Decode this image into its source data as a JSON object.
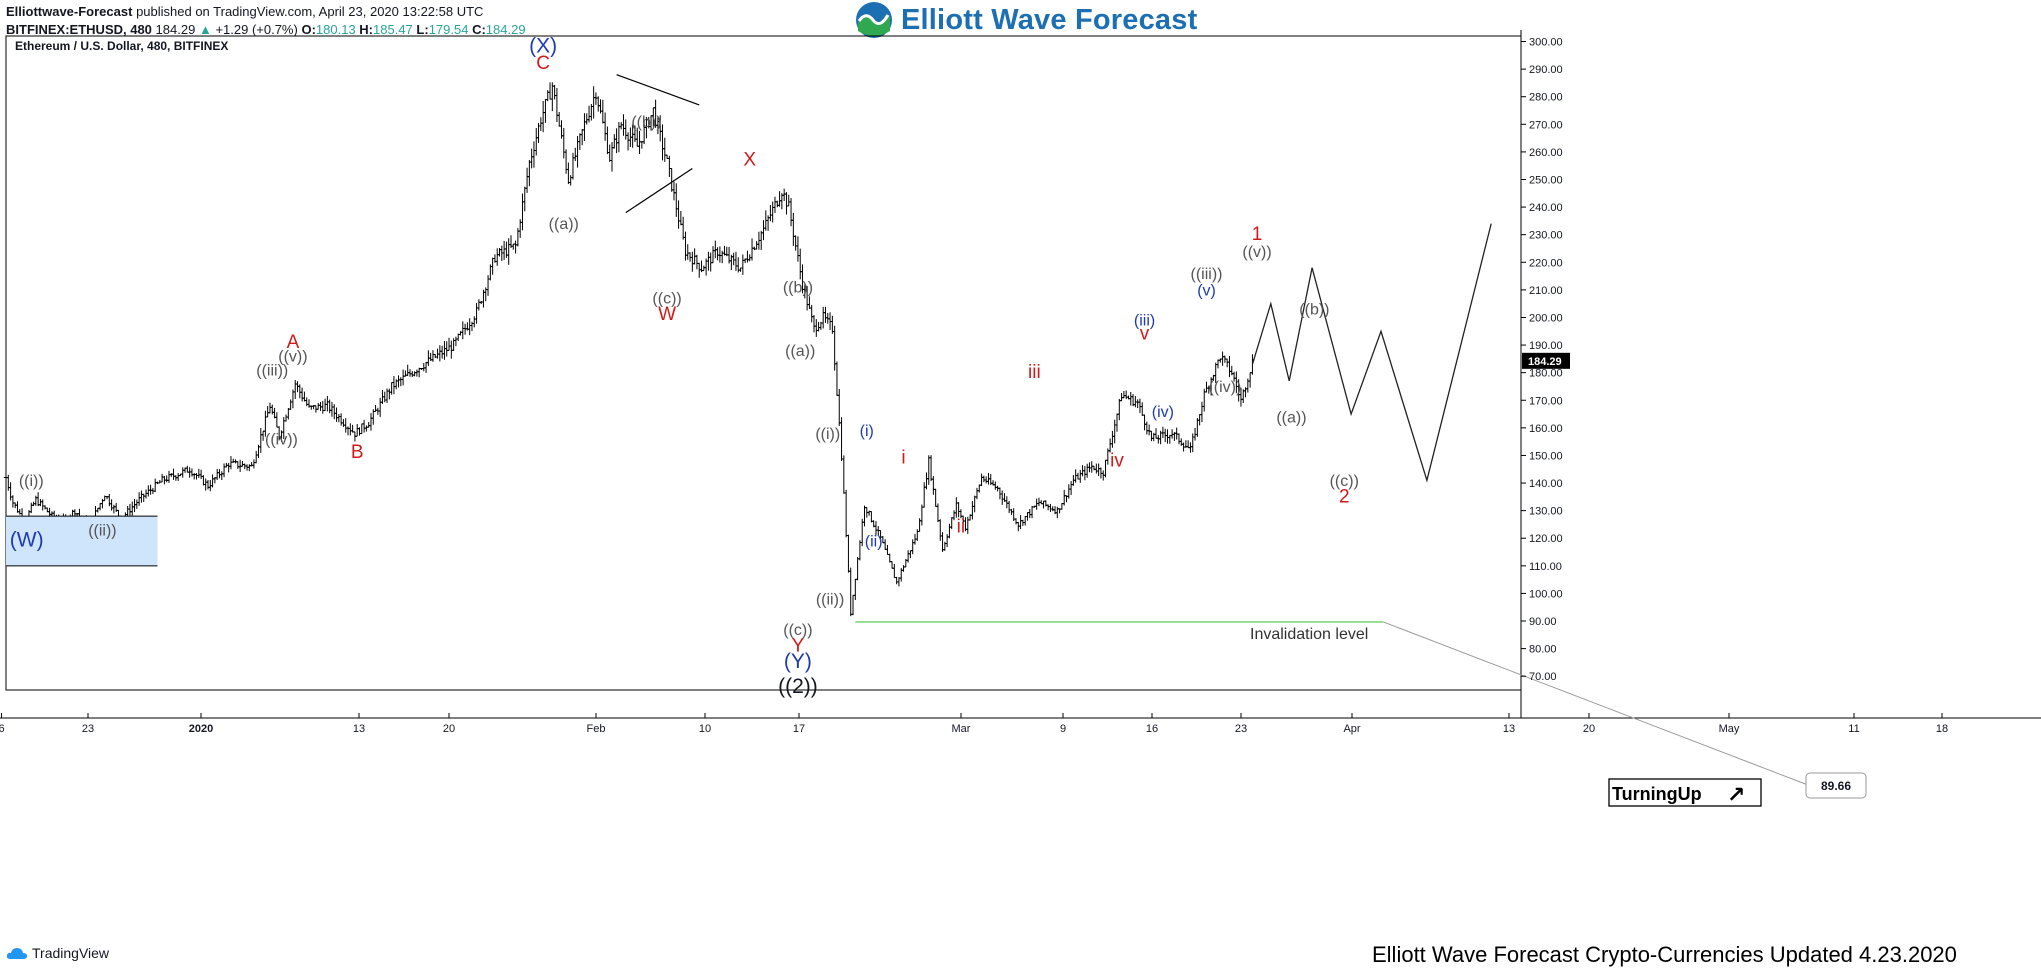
{
  "header": {
    "publisher": "Elliottwave-Forecast",
    "published_text": "published on TradingView.com, April 23, 2020 13:22:58 UTC",
    "symbol": "BITFINEX:ETHUSD, 480",
    "last": "184.29",
    "change_arrow": "▲",
    "change": "+1.29 (+0.7%)",
    "ohlc": [
      {
        "key": "O:",
        "value": "180.13"
      },
      {
        "key": "H:",
        "value": "185.47"
      },
      {
        "key": "L:",
        "value": "179.54"
      },
      {
        "key": "C:",
        "value": "184.29"
      }
    ]
  },
  "logo": {
    "text": "Elliott Wave Forecast",
    "icon": "wave-logo-icon"
  },
  "footer": {
    "brand": "TradingView",
    "brand_icon": "tradingview-cloud-icon",
    "update": "Elliott Wave Forecast Crypto-Currencies Updated 4.23.2020"
  },
  "chart_data": {
    "type": "candlestick-ohlc",
    "title": "Ethereum / U.S. Dollar, 480, BITFINEX",
    "xlabel": "",
    "ylabel": "",
    "ylim": [
      65,
      302
    ],
    "x_tick_labels": [
      "6",
      "23",
      "2020",
      "13",
      "20",
      "Feb",
      "10",
      "17",
      "Mar",
      "9",
      "16",
      "23",
      "Apr",
      "13",
      "20",
      "May",
      "11",
      "18"
    ],
    "y_ticks": [
      70,
      80,
      90,
      100,
      110,
      120,
      130,
      140,
      150,
      160,
      170,
      180,
      190,
      200,
      210,
      220,
      230,
      240,
      250,
      260,
      270,
      280,
      290,
      300
    ],
    "y_tick_labels": [
      "70.00",
      "80.00",
      "90.00",
      "100.00",
      "110.00",
      "120.00",
      "130.00",
      "140.00",
      "150.00",
      "160.00",
      "170.00",
      "180.00",
      "190.00",
      "200.00",
      "210.00",
      "220.00",
      "230.00",
      "240.00",
      "250.00",
      "260.00",
      "270.00",
      "280.00",
      "290.00",
      "300.00"
    ],
    "last_price": 184.29,
    "last_price_label": "184.29",
    "price_path": [
      {
        "t": 0,
        "p": 142
      },
      {
        "t": 3,
        "p": 133
      },
      {
        "t": 8,
        "p": 126
      },
      {
        "t": 13,
        "p": 134
      },
      {
        "t": 20,
        "p": 128
      },
      {
        "t": 25,
        "p": 126
      },
      {
        "t": 30,
        "p": 130
      },
      {
        "t": 36,
        "p": 124
      },
      {
        "t": 43,
        "p": 136
      },
      {
        "t": 50,
        "p": 127
      },
      {
        "t": 58,
        "p": 134
      },
      {
        "t": 68,
        "p": 141
      },
      {
        "t": 80,
        "p": 145
      },
      {
        "t": 88,
        "p": 139
      },
      {
        "t": 97,
        "p": 147
      },
      {
        "t": 107,
        "p": 146
      },
      {
        "t": 115,
        "p": 168
      },
      {
        "t": 119,
        "p": 157
      },
      {
        "t": 126,
        "p": 176
      },
      {
        "t": 132,
        "p": 167
      },
      {
        "t": 140,
        "p": 168
      },
      {
        "t": 152,
        "p": 158
      },
      {
        "t": 158,
        "p": 162
      },
      {
        "t": 168,
        "p": 175
      },
      {
        "t": 180,
        "p": 182
      },
      {
        "t": 195,
        "p": 190
      },
      {
        "t": 205,
        "p": 202
      },
      {
        "t": 213,
        "p": 222
      },
      {
        "t": 222,
        "p": 226
      },
      {
        "t": 228,
        "p": 256
      },
      {
        "t": 233,
        "p": 272
      },
      {
        "t": 238,
        "p": 284
      },
      {
        "t": 245,
        "p": 250
      },
      {
        "t": 252,
        "p": 270
      },
      {
        "t": 257,
        "p": 282
      },
      {
        "t": 263,
        "p": 258
      },
      {
        "t": 268,
        "p": 270
      },
      {
        "t": 275,
        "p": 262
      },
      {
        "t": 282,
        "p": 275
      },
      {
        "t": 288,
        "p": 256
      },
      {
        "t": 296,
        "p": 224
      },
      {
        "t": 303,
        "p": 218
      },
      {
        "t": 310,
        "p": 224
      },
      {
        "t": 320,
        "p": 218
      },
      {
        "t": 330,
        "p": 232
      },
      {
        "t": 338,
        "p": 246
      },
      {
        "t": 341,
        "p": 240
      },
      {
        "t": 347,
        "p": 212
      },
      {
        "t": 352,
        "p": 196
      },
      {
        "t": 356,
        "p": 200
      },
      {
        "t": 360,
        "p": 196
      },
      {
        "t": 364,
        "p": 150
      },
      {
        "t": 368,
        "p": 93
      },
      {
        "t": 374,
        "p": 132
      },
      {
        "t": 381,
        "p": 120
      },
      {
        "t": 388,
        "p": 104
      },
      {
        "t": 392,
        "p": 112
      },
      {
        "t": 397,
        "p": 122
      },
      {
        "t": 402,
        "p": 148
      },
      {
        "t": 408,
        "p": 116
      },
      {
        "t": 414,
        "p": 132
      },
      {
        "t": 418,
        "p": 124
      },
      {
        "t": 425,
        "p": 142
      },
      {
        "t": 432,
        "p": 138
      },
      {
        "t": 441,
        "p": 125
      },
      {
        "t": 450,
        "p": 133
      },
      {
        "t": 458,
        "p": 130
      },
      {
        "t": 465,
        "p": 141
      },
      {
        "t": 473,
        "p": 146
      },
      {
        "t": 478,
        "p": 144
      },
      {
        "t": 486,
        "p": 172
      },
      {
        "t": 493,
        "p": 169
      },
      {
        "t": 499,
        "p": 156
      },
      {
        "t": 508,
        "p": 158
      },
      {
        "t": 516,
        "p": 152
      },
      {
        "t": 522,
        "p": 172
      },
      {
        "t": 529,
        "p": 186
      },
      {
        "t": 534,
        "p": 180
      },
      {
        "t": 538,
        "p": 170
      },
      {
        "t": 543,
        "p": 184
      }
    ],
    "projection": [
      {
        "t": 543,
        "p": 183
      },
      {
        "t": 551,
        "p": 205
      },
      {
        "t": 559,
        "p": 177
      },
      {
        "t": 569,
        "p": 218
      },
      {
        "t": 586,
        "p": 165
      },
      {
        "t": 599,
        "p": 195
      },
      {
        "t": 619,
        "p": 141
      },
      {
        "t": 647,
        "p": 234
      }
    ],
    "triangle": [
      {
        "t": 266,
        "p": 288
      },
      {
        "t": 302,
        "p": 277
      },
      {
        "t": 270,
        "p": 238
      },
      {
        "t": 299,
        "p": 254
      }
    ],
    "support_box": {
      "label": "support-zone",
      "t0": 0,
      "t1": 66,
      "p0": 110,
      "p1": 128
    },
    "invalidation": {
      "label": "Invalidation level",
      "price": 89.66,
      "price_label": "89.66",
      "t0": 370,
      "t1": 600
    },
    "turning_badge": {
      "text": "TurningUp",
      "arrow": "↗"
    },
    "wave_labels": [
      {
        "text": "((i))",
        "t": 11,
        "p": 139,
        "color": "#555555"
      },
      {
        "text": "(W)",
        "t": 9,
        "p": 117,
        "color": "#1f3bb0"
      },
      {
        "text": "((ii))",
        "t": 42,
        "p": 121,
        "color": "#555555"
      },
      {
        "text": "((iii))",
        "t": 116,
        "p": 179,
        "color": "#555555"
      },
      {
        "text": "((iv))",
        "t": 120,
        "p": 154,
        "color": "#555555"
      },
      {
        "text": "((v))",
        "t": 125,
        "p": 184,
        "color": "#555555"
      },
      {
        "text": "A",
        "t": 125,
        "p": 189,
        "color": "#d11a1a"
      },
      {
        "text": "B",
        "t": 153,
        "p": 149,
        "color": "#d11a1a"
      },
      {
        "text": "(X)",
        "t": 234,
        "p": 296,
        "color": "#1f3bb0"
      },
      {
        "text": "C",
        "t": 234,
        "p": 290,
        "color": "#d11a1a"
      },
      {
        "text": "((a))",
        "t": 243,
        "p": 232,
        "color": "#555555"
      },
      {
        "text": "((b))",
        "t": 279,
        "p": 269,
        "color": "#555555"
      },
      {
        "text": "((c))",
        "t": 288,
        "p": 205,
        "color": "#555555"
      },
      {
        "text": "W",
        "t": 288,
        "p": 199,
        "color": "#d11a1a"
      },
      {
        "text": "X",
        "t": 324,
        "p": 255,
        "color": "#d11a1a"
      },
      {
        "text": "((b))",
        "t": 345,
        "p": 209,
        "color": "#555555"
      },
      {
        "text": "((a))",
        "t": 346,
        "p": 186,
        "color": "#555555"
      },
      {
        "text": "((i))",
        "t": 358,
        "p": 156,
        "color": "#555555"
      },
      {
        "text": "((ii))",
        "t": 359,
        "p": 96,
        "color": "#555555"
      },
      {
        "text": "((c))",
        "t": 345,
        "p": 85,
        "color": "#555555"
      },
      {
        "text": "Y",
        "t": 345,
        "p": 79,
        "color": "#d11a1a"
      },
      {
        "text": "(Y)",
        "t": 345,
        "p": 73,
        "color": "#1f3bb0"
      },
      {
        "text": "((2))",
        "t": 345,
        "p": 64,
        "color": "#131722"
      },
      {
        "text": "(i)",
        "t": 375,
        "p": 157,
        "color": "#1f3bb0"
      },
      {
        "text": "(ii)",
        "t": 378,
        "p": 117,
        "color": "#1f3bb0"
      },
      {
        "text": "i",
        "t": 391,
        "p": 147,
        "color": "#d11a1a"
      },
      {
        "text": "ii",
        "t": 416,
        "p": 122,
        "color": "#d11a1a"
      },
      {
        "text": "iii",
        "t": 448,
        "p": 178,
        "color": "#d11a1a"
      },
      {
        "text": "iv",
        "t": 484,
        "p": 146,
        "color": "#d11a1a"
      },
      {
        "text": "(iii)",
        "t": 496,
        "p": 197,
        "color": "#1f3bb0"
      },
      {
        "text": "v",
        "t": 496,
        "p": 192,
        "color": "#d11a1a"
      },
      {
        "text": "(iv)",
        "t": 504,
        "p": 164,
        "color": "#1f3bb0"
      },
      {
        "text": "((iii))",
        "t": 523,
        "p": 214,
        "color": "#555555"
      },
      {
        "text": "(v)",
        "t": 523,
        "p": 208,
        "color": "#1f3bb0"
      },
      {
        "text": "((iv))",
        "t": 531,
        "p": 173,
        "color": "#555555"
      },
      {
        "text": "1",
        "t": 545,
        "p": 228,
        "color": "#d11a1a"
      },
      {
        "text": "((v))",
        "t": 545,
        "p": 222,
        "color": "#555555"
      },
      {
        "text": "((b))",
        "t": 570,
        "p": 201,
        "color": "#555555"
      },
      {
        "text": "((a))",
        "t": 560,
        "p": 162,
        "color": "#555555"
      },
      {
        "text": "((c))",
        "t": 583,
        "p": 139,
        "color": "#555555"
      },
      {
        "text": "2",
        "t": 583,
        "p": 133,
        "color": "#d11a1a"
      }
    ],
    "grid": false,
    "legend": "none"
  }
}
